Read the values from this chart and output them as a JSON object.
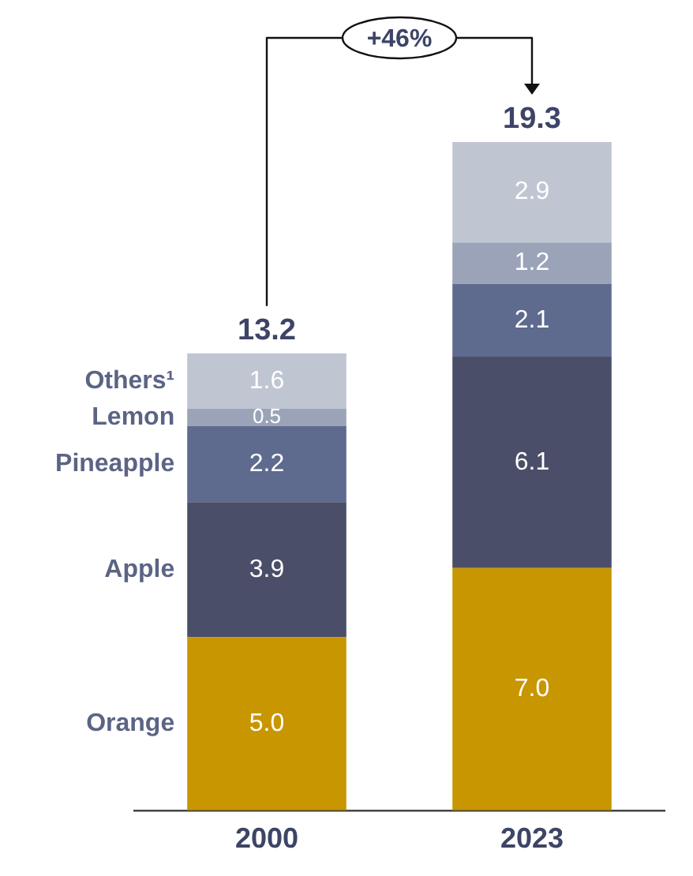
{
  "chart_data": {
    "type": "bar",
    "stacked": true,
    "categories": [
      "2000",
      "2023"
    ],
    "series": [
      {
        "name": "Orange",
        "color": "#c89600",
        "values": [
          5.0,
          7.0
        ],
        "value_labels": [
          "5.0",
          "7.0"
        ]
      },
      {
        "name": "Apple",
        "color": "#4a4e68",
        "values": [
          3.9,
          6.1
        ],
        "value_labels": [
          "3.9",
          "6.1"
        ]
      },
      {
        "name": "Pineapple",
        "color": "#5e6a8e",
        "values": [
          2.2,
          2.1
        ],
        "value_labels": [
          "2.2",
          "2.1"
        ]
      },
      {
        "name": "Lemon",
        "color": "#9aa3b8",
        "values": [
          0.5,
          1.2
        ],
        "value_labels": [
          "0.5",
          "1.2"
        ]
      },
      {
        "name": "Others¹",
        "color": "#c0c5d2",
        "values": [
          1.6,
          2.9
        ],
        "value_labels": [
          "1.6",
          "2.9"
        ]
      }
    ],
    "totals": [
      "13.2",
      "19.3"
    ],
    "annotations": [
      "+46%"
    ],
    "legend": false,
    "grid": false,
    "tick_labels": "x"
  }
}
